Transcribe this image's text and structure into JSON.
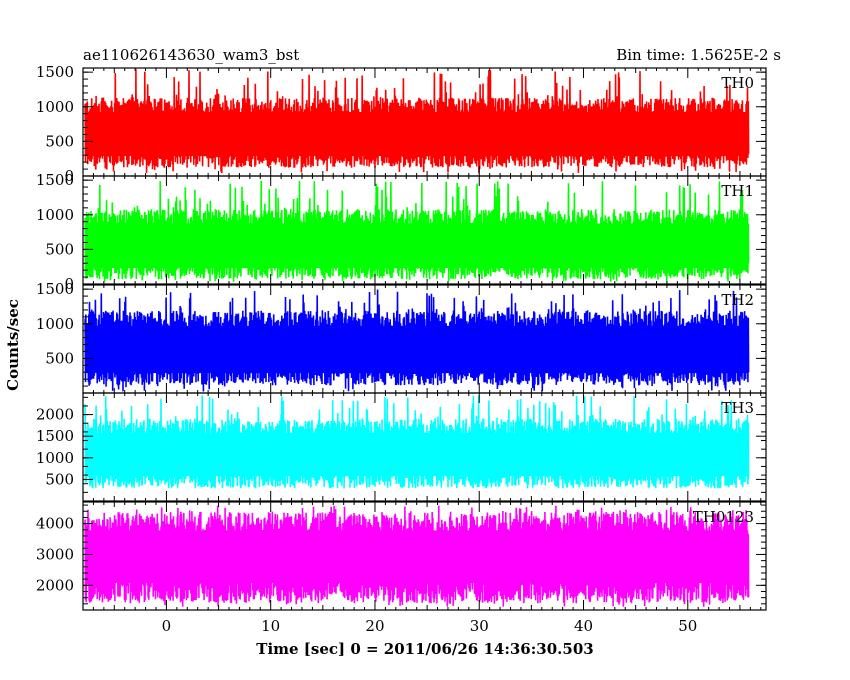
{
  "header": {
    "left_title": "ae110626143630_wam3_bst",
    "right_title": "Bin time: 1.5625E-2 s"
  },
  "chart_data": {
    "type": "line",
    "title": "ae110626143630_wam3_bst",
    "subtitle": "Bin time: 1.5625E-2 s",
    "xlabel": "Time [sec] 0 = 2011/06/26 14:36:30.503",
    "ylabel": "Counts/sec",
    "xlim": [
      -8,
      57.5
    ],
    "x_ticks": [
      0,
      10,
      20,
      30,
      40,
      50
    ],
    "x_data_range": [
      -7.8,
      55.8
    ],
    "bin_time_s": 0.015625,
    "grid": false,
    "panels": [
      {
        "name": "TH0",
        "color": "#ff0000",
        "ylim": [
          0,
          1560
        ],
        "y_ticks": [
          0,
          500,
          1000,
          1500
        ],
        "typical_low": 250,
        "typical_high": 1000,
        "floor": 40,
        "peak": 1550
      },
      {
        "name": "TH1",
        "color": "#00ff00",
        "ylim": [
          0,
          1560
        ],
        "y_ticks": [
          0,
          500,
          1000,
          1500
        ],
        "typical_low": 200,
        "typical_high": 950,
        "floor": 30,
        "peak": 1500
      },
      {
        "name": "TH2",
        "color": "#0000ff",
        "ylim": [
          0,
          1560
        ],
        "y_ticks": [
          500,
          1000,
          1500
        ],
        "typical_low": 250,
        "typical_high": 1050,
        "floor": 20,
        "peak": 1500
      },
      {
        "name": "TH3",
        "color": "#00ffff",
        "ylim": [
          0,
          2500
        ],
        "y_ticks": [
          500,
          1000,
          1500,
          2000
        ],
        "typical_low": 500,
        "typical_high": 1700,
        "floor": 300,
        "peak": 2450
      },
      {
        "name": "TH0123",
        "color": "#ff00ff",
        "ylim": [
          1200,
          4700
        ],
        "y_ticks": [
          2000,
          3000,
          4000
        ],
        "typical_low": 1800,
        "typical_high": 4000,
        "floor": 1300,
        "peak": 4600
      }
    ]
  }
}
